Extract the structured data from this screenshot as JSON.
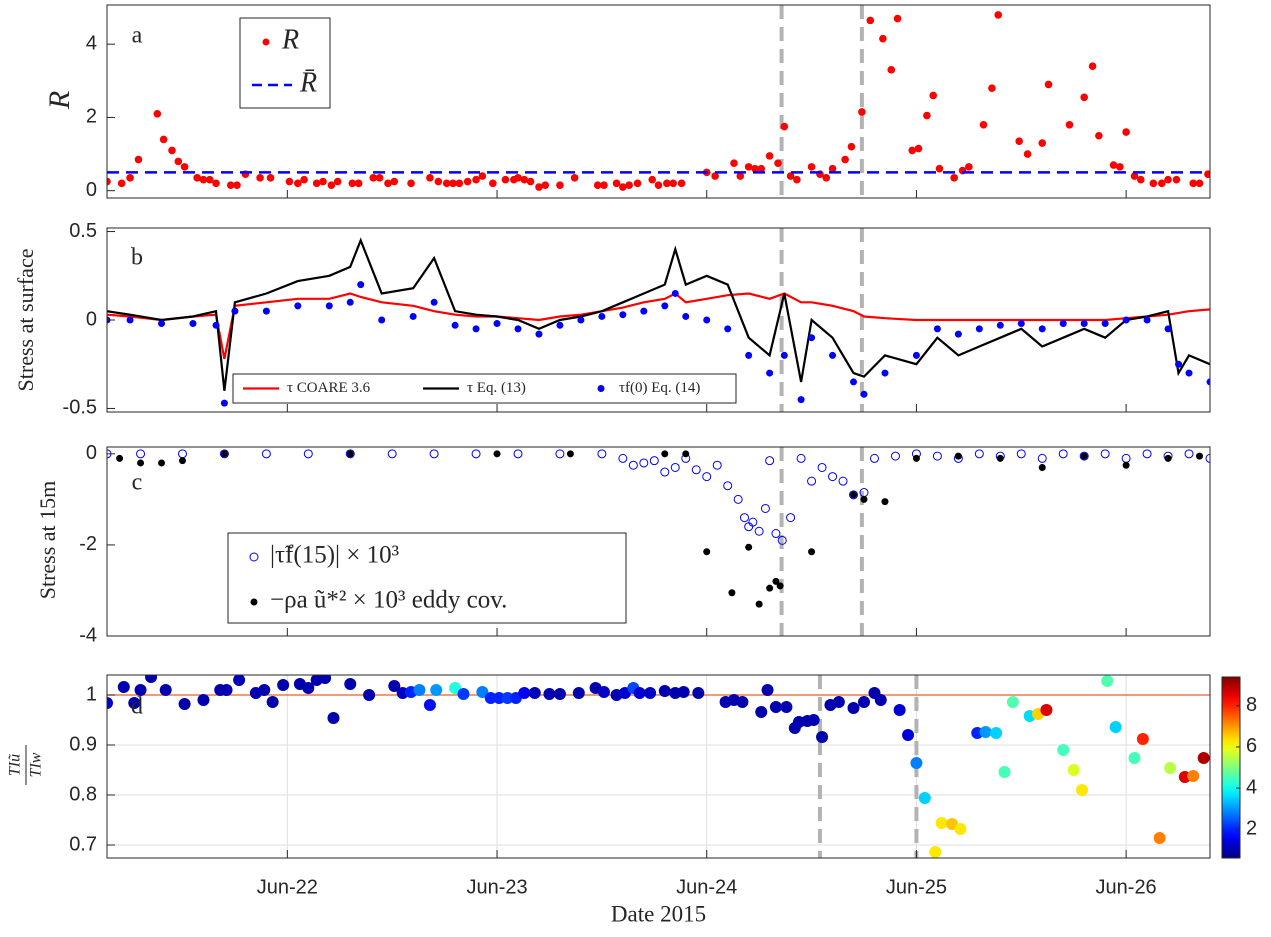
{
  "chart_data": [
    {
      "type": "scatter",
      "panel_label": "a",
      "ylabel": "R",
      "xlim": [
        21.14,
        26.4
      ],
      "xticks": [
        22,
        23,
        24,
        25,
        26
      ],
      "ylim": [
        -0.2,
        5.07
      ],
      "yticks": [
        0,
        2,
        4
      ],
      "vlines": [
        24.357,
        24.74
      ],
      "vline_color": "#b3b3b3",
      "series": [
        {
          "name": "R",
          "color": "#ff0000",
          "mode": "markers",
          "x": [
            21.14,
            21.21,
            21.25,
            21.29,
            21.38,
            21.41,
            21.45,
            21.48,
            21.51,
            21.57,
            21.6,
            21.63,
            21.66,
            21.73,
            21.76,
            21.8,
            21.87,
            21.92,
            22.01,
            22.05,
            22.08,
            22.14,
            22.17,
            22.21,
            22.24,
            22.31,
            22.34,
            22.41,
            22.44,
            22.48,
            22.51,
            22.59,
            22.68,
            22.72,
            22.76,
            22.79,
            22.82,
            22.86,
            22.9,
            22.93,
            22.98,
            23.04,
            23.08,
            23.1,
            23.13,
            23.16,
            23.2,
            23.23,
            23.3,
            23.37,
            23.48,
            23.51,
            23.57,
            23.6,
            23.63,
            23.67,
            23.74,
            23.77,
            23.81,
            23.84,
            23.88,
            24.0,
            24.04,
            24.13,
            24.16,
            24.2,
            24.23,
            24.26,
            24.3,
            24.34,
            24.37,
            24.4,
            24.43,
            24.5,
            24.54,
            24.57,
            24.6,
            24.66,
            24.69,
            24.74,
            24.78,
            24.84,
            24.88,
            24.91,
            24.98,
            25.01,
            25.05,
            25.08,
            25.11,
            25.18,
            25.22,
            25.25,
            25.32,
            25.36,
            25.39,
            25.49,
            25.53,
            25.6,
            25.63,
            25.73,
            25.8,
            25.84,
            25.87,
            25.94,
            25.97,
            26.0,
            26.04,
            26.07,
            26.13,
            26.17,
            26.2,
            26.24,
            26.32,
            26.35,
            26.39
          ],
          "values": [
            0.25,
            0.2,
            0.35,
            0.85,
            2.1,
            1.4,
            1.1,
            0.8,
            0.65,
            0.35,
            0.3,
            0.3,
            0.2,
            0.15,
            0.15,
            0.45,
            0.35,
            0.35,
            0.25,
            0.2,
            0.3,
            0.2,
            0.25,
            0.15,
            0.25,
            0.2,
            0.2,
            0.35,
            0.35,
            0.2,
            0.25,
            0.2,
            0.35,
            0.25,
            0.2,
            0.2,
            0.2,
            0.25,
            0.3,
            0.4,
            0.2,
            0.3,
            0.3,
            0.35,
            0.3,
            0.25,
            0.1,
            0.15,
            0.15,
            0.35,
            0.15,
            0.15,
            0.2,
            0.1,
            0.15,
            0.2,
            0.3,
            0.15,
            0.2,
            0.2,
            0.2,
            0.5,
            0.4,
            0.75,
            0.4,
            0.65,
            0.6,
            0.6,
            0.95,
            0.75,
            1.75,
            0.4,
            0.3,
            0.65,
            0.45,
            0.35,
            0.6,
            0.85,
            1.2,
            2.15,
            4.65,
            4.15,
            3.3,
            4.7,
            1.1,
            1.15,
            2.05,
            2.6,
            0.6,
            0.35,
            0.55,
            0.65,
            1.8,
            2.8,
            4.8,
            1.35,
            1.0,
            1.3,
            2.9,
            1.8,
            2.55,
            3.4,
            1.5,
            0.7,
            0.65,
            1.6,
            0.4,
            0.3,
            0.2,
            0.2,
            0.3,
            0.3,
            0.2,
            0.2,
            0.45
          ]
        },
        {
          "name": "R̄",
          "color": "#0000ff",
          "mode": "hline",
          "value": 0.5
        }
      ]
    },
    {
      "type": "line",
      "panel_label": "b",
      "ylabel": "Stress at surface",
      "xlim": [
        21.14,
        26.4
      ],
      "xticks": [
        22,
        23,
        24,
        25,
        26
      ],
      "ylim": [
        -0.52,
        0.52
      ],
      "yticks": [
        0.5,
        0,
        -0.5
      ],
      "vlines": [
        24.357,
        24.74
      ],
      "vline_color": "#b3b3b3",
      "x": [
        21.14,
        21.25,
        21.4,
        21.55,
        21.66,
        21.7,
        21.75,
        21.9,
        22.05,
        22.2,
        22.3,
        22.35,
        22.45,
        22.6,
        22.7,
        22.8,
        22.9,
        23.0,
        23.1,
        23.2,
        23.3,
        23.4,
        23.5,
        23.6,
        23.7,
        23.8,
        23.85,
        23.9,
        24.0,
        24.1,
        24.2,
        24.3,
        24.37,
        24.45,
        24.5,
        24.6,
        24.7,
        24.75,
        24.85,
        25.0,
        25.1,
        25.2,
        25.3,
        25.4,
        25.5,
        25.6,
        25.7,
        25.8,
        25.9,
        26.0,
        26.1,
        26.2,
        26.25,
        26.3,
        26.4
      ],
      "series": [
        {
          "name": "τ COARE 3.6",
          "color": "#ff0000",
          "mode": "line",
          "values": [
            0.03,
            0.02,
            0.0,
            0.02,
            0.03,
            -0.22,
            0.08,
            0.1,
            0.12,
            0.12,
            0.15,
            0.13,
            0.1,
            0.08,
            0.05,
            0.03,
            0.02,
            0.02,
            0.01,
            0.0,
            0.02,
            0.03,
            0.05,
            0.07,
            0.1,
            0.12,
            0.15,
            0.1,
            0.12,
            0.14,
            0.15,
            0.12,
            0.15,
            0.1,
            0.1,
            0.08,
            0.05,
            0.02,
            0.01,
            0.0,
            0,
            0,
            0,
            0,
            0,
            0,
            0,
            0,
            0,
            0.01,
            0.02,
            0.03,
            0.04,
            0.05,
            0.06
          ]
        },
        {
          "name": "τ Eq. (13)",
          "color": "#000000",
          "mode": "line",
          "values": [
            0.05,
            0.03,
            0.0,
            0.02,
            0.05,
            -0.4,
            0.1,
            0.15,
            0.22,
            0.25,
            0.3,
            0.45,
            0.15,
            0.18,
            0.35,
            0.05,
            0.03,
            0.02,
            0.0,
            -0.05,
            0.0,
            0.02,
            0.05,
            0.1,
            0.15,
            0.2,
            0.4,
            0.2,
            0.25,
            0.2,
            -0.1,
            -0.2,
            0.15,
            -0.35,
            0.0,
            -0.1,
            -0.3,
            -0.32,
            -0.2,
            -0.25,
            -0.1,
            -0.2,
            -0.15,
            -0.1,
            -0.05,
            -0.15,
            -0.1,
            -0.05,
            -0.1,
            0.0,
            0.02,
            0.05,
            -0.3,
            -0.2,
            -0.25
          ]
        },
        {
          "name": "τf(0) Eq. (14)",
          "color": "#0000ff",
          "mode": "markers",
          "values": [
            0.0,
            0.0,
            -0.02,
            -0.02,
            -0.03,
            -0.47,
            0.05,
            0.05,
            0.08,
            0.08,
            0.1,
            0.2,
            0.0,
            0.02,
            0.1,
            -0.03,
            -0.05,
            -0.02,
            -0.05,
            -0.08,
            -0.03,
            0.0,
            0.02,
            0.03,
            0.05,
            0.08,
            0.15,
            0.02,
            0.0,
            -0.05,
            -0.2,
            -0.3,
            -0.2,
            -0.45,
            -0.1,
            -0.2,
            -0.35,
            -0.42,
            -0.3,
            -0.2,
            -0.05,
            -0.08,
            -0.05,
            -0.03,
            -0.02,
            -0.05,
            -0.02,
            -0.02,
            -0.02,
            0.0,
            0.0,
            -0.05,
            -0.25,
            -0.3,
            -0.35
          ]
        }
      ]
    },
    {
      "type": "scatter",
      "panel_label": "c",
      "ylabel": "Stress at 15m",
      "xlim": [
        21.14,
        26.4
      ],
      "xticks": [
        22,
        23,
        24,
        25,
        26
      ],
      "ylim": [
        -4,
        0.15
      ],
      "yticks": [
        0,
        -2,
        -4
      ],
      "vlines": [
        24.357,
        24.74
      ],
      "vline_color": "#b3b3b3",
      "series": [
        {
          "name": "|τ̃f(15)| × 10³",
          "color": "#0000ff",
          "mode": "open-markers",
          "x": [
            21.14,
            21.3,
            21.5,
            21.7,
            21.9,
            22.1,
            22.3,
            22.5,
            22.7,
            22.9,
            23.1,
            23.3,
            23.5,
            23.6,
            23.65,
            23.7,
            23.75,
            23.8,
            23.85,
            23.9,
            23.95,
            24.0,
            24.05,
            24.1,
            24.15,
            24.18,
            24.2,
            24.22,
            24.25,
            24.28,
            24.3,
            24.33,
            24.36,
            24.4,
            24.45,
            24.5,
            24.55,
            24.6,
            24.65,
            24.7,
            24.75,
            24.8,
            24.9,
            25.0,
            25.1,
            25.2,
            25.3,
            25.4,
            25.5,
            25.6,
            25.7,
            25.8,
            25.9,
            26.0,
            26.1,
            26.2,
            26.3,
            26.4
          ],
          "values": [
            0,
            0,
            0,
            0,
            0,
            0,
            0,
            0,
            0,
            0,
            0,
            0,
            0,
            -0.1,
            -0.25,
            -0.2,
            -0.15,
            -0.4,
            -0.3,
            -0.1,
            -0.35,
            -0.5,
            -0.25,
            -0.7,
            -1.0,
            -1.4,
            -1.6,
            -1.5,
            -1.7,
            -1.2,
            -0.15,
            -1.75,
            -1.9,
            -1.4,
            -0.1,
            -0.6,
            -0.3,
            -0.5,
            -0.6,
            -0.9,
            -0.85,
            -0.1,
            -0.05,
            0,
            -0.05,
            -0.1,
            0,
            -0.05,
            0,
            -0.1,
            0,
            -0.05,
            0,
            -0.1,
            0,
            -0.05,
            0,
            -0.1
          ]
        },
        {
          "name": "−ρa ũ*² × 10³ eddy cov.",
          "color": "#000000",
          "mode": "markers",
          "x": [
            21.2,
            21.3,
            21.4,
            21.5,
            21.7,
            22.3,
            23.0,
            23.35,
            23.8,
            23.9,
            24.0,
            24.12,
            24.2,
            24.25,
            24.3,
            24.33,
            24.35,
            24.5,
            24.7,
            24.75,
            24.85,
            25.0,
            25.2,
            25.4,
            25.6,
            25.8,
            26.0,
            26.2,
            26.35
          ],
          "values": [
            -0.1,
            -0.2,
            -0.2,
            -0.15,
            0,
            0,
            0,
            0,
            0,
            0,
            -2.15,
            -3.05,
            -2.05,
            -3.3,
            -2.95,
            -2.8,
            -2.9,
            -2.15,
            -0.9,
            -1.0,
            -1.05,
            -0.1,
            -0.05,
            -0.1,
            -0.3,
            -0.05,
            -0.25,
            -0.1,
            -0.05
          ]
        }
      ]
    },
    {
      "type": "scatter",
      "panel_label": "d",
      "ylabel_numerator": "TIũ",
      "ylabel_denominator": "TIw",
      "xlabel": "Date 2015",
      "grid": true,
      "xlim": [
        21.14,
        26.4
      ],
      "xticks": [
        {
          "value": 22,
          "label": "Jun-22"
        },
        {
          "value": 23,
          "label": "Jun-23"
        },
        {
          "value": 24,
          "label": "Jun-24"
        },
        {
          "value": 25,
          "label": "Jun-25"
        },
        {
          "value": 26,
          "label": "Jun-26"
        }
      ],
      "ylim": [
        0.674,
        1.04
      ],
      "yticks": [
        0.7,
        0.8,
        0.9,
        1
      ],
      "vlines": [
        24.54,
        25.0
      ],
      "vline_color": "#b3b3b3",
      "refline": {
        "value": 1,
        "color": "#e8602c"
      },
      "colormap": "jet",
      "clim": [
        0.6,
        9.4
      ],
      "cticks": [
        2,
        4,
        6,
        8
      ],
      "series": [
        {
          "mode": "color-markers",
          "x": [
            21.14,
            21.22,
            21.27,
            21.3,
            21.35,
            21.42,
            21.51,
            21.6,
            21.68,
            21.71,
            21.77,
            21.85,
            21.89,
            21.93,
            21.98,
            22.06,
            22.1,
            22.14,
            22.18,
            22.22,
            22.3,
            22.39,
            22.51,
            22.55,
            22.59,
            22.63,
            22.68,
            22.71,
            22.8,
            22.84,
            22.93,
            22.97,
            23.01,
            23.05,
            23.09,
            23.13,
            23.18,
            23.25,
            23.3,
            23.39,
            23.47,
            23.51,
            23.57,
            23.61,
            23.65,
            23.68,
            23.73,
            23.8,
            23.85,
            23.89,
            23.96,
            24.09,
            24.13,
            24.17,
            24.26,
            24.29,
            24.33,
            24.38,
            24.42,
            24.44,
            24.48,
            24.51,
            24.55,
            24.59,
            24.63,
            24.7,
            24.75,
            24.8,
            24.83,
            24.92,
            24.96,
            25.0,
            25.04,
            25.09,
            25.12,
            25.17,
            25.21,
            25.29,
            25.33,
            25.38,
            25.42,
            25.46,
            25.54,
            25.58,
            25.62,
            25.7,
            25.75,
            25.79,
            25.91,
            25.95,
            26.04,
            26.08,
            26.16,
            26.21,
            26.28,
            26.32,
            26.37
          ],
          "values": [
            0.984,
            1.016,
            0.984,
            1.01,
            1.036,
            1.01,
            0.982,
            0.99,
            1.01,
            1.01,
            1.03,
            1.004,
            1.01,
            0.986,
            1.02,
            1.022,
            1.014,
            1.03,
            1.034,
            0.954,
            1.022,
            1.0,
            1.018,
            1.004,
            1.006,
            1.01,
            0.98,
            1.01,
            1.014,
            1.002,
            1.006,
            0.994,
            0.994,
            0.994,
            0.994,
            1.004,
            1.004,
            1.002,
            1.002,
            1.004,
            1.014,
            1.006,
            1.0,
            1.004,
            1.014,
            1.004,
            1.004,
            1.008,
            1.004,
            1.006,
            1.004,
            0.986,
            0.99,
            0.986,
            0.966,
            1.01,
            0.976,
            0.976,
            0.934,
            0.946,
            0.948,
            0.95,
            0.916,
            0.98,
            0.986,
            0.974,
            0.986,
            1.004,
            0.99,
            0.97,
            0.92,
            0.864,
            0.794,
            0.686,
            0.744,
            0.742,
            0.732,
            0.924,
            0.926,
            0.924,
            0.846,
            0.986,
            0.958,
            0.962,
            0.97,
            0.89,
            0.85,
            0.81,
            1.028,
            0.936,
            0.874,
            0.912,
            0.714,
            0.854,
            0.836,
            0.838,
            0.874
          ],
          "c": [
            1.3,
            1,
            1,
            1,
            1,
            1,
            1,
            1,
            1,
            1,
            1.1,
            1,
            1,
            1,
            1,
            1,
            1,
            1,
            1,
            1,
            1,
            1,
            1,
            1.2,
            2.0,
            2.8,
            1.8,
            3.0,
            4.2,
            2.2,
            2.8,
            2.0,
            2.0,
            2.2,
            2.0,
            1.6,
            1.1,
            1,
            1,
            1,
            1,
            1.2,
            1,
            1.3,
            2.3,
            1.3,
            1.2,
            1,
            1,
            1,
            1,
            1,
            1,
            1,
            1,
            1,
            1,
            1,
            1,
            1,
            1,
            1,
            1,
            1,
            1,
            1,
            1,
            1,
            1,
            1.3,
            1.4,
            2.8,
            3.5,
            6.3,
            6.3,
            6.6,
            6.3,
            2,
            3,
            3.5,
            4.5,
            4.6,
            3.6,
            6.5,
            8.6,
            4.5,
            5.8,
            6.3,
            4.6,
            3.5,
            4.5,
            8.0,
            7.2,
            5.5,
            8.6,
            7.2,
            9.0
          ]
        }
      ]
    }
  ]
}
